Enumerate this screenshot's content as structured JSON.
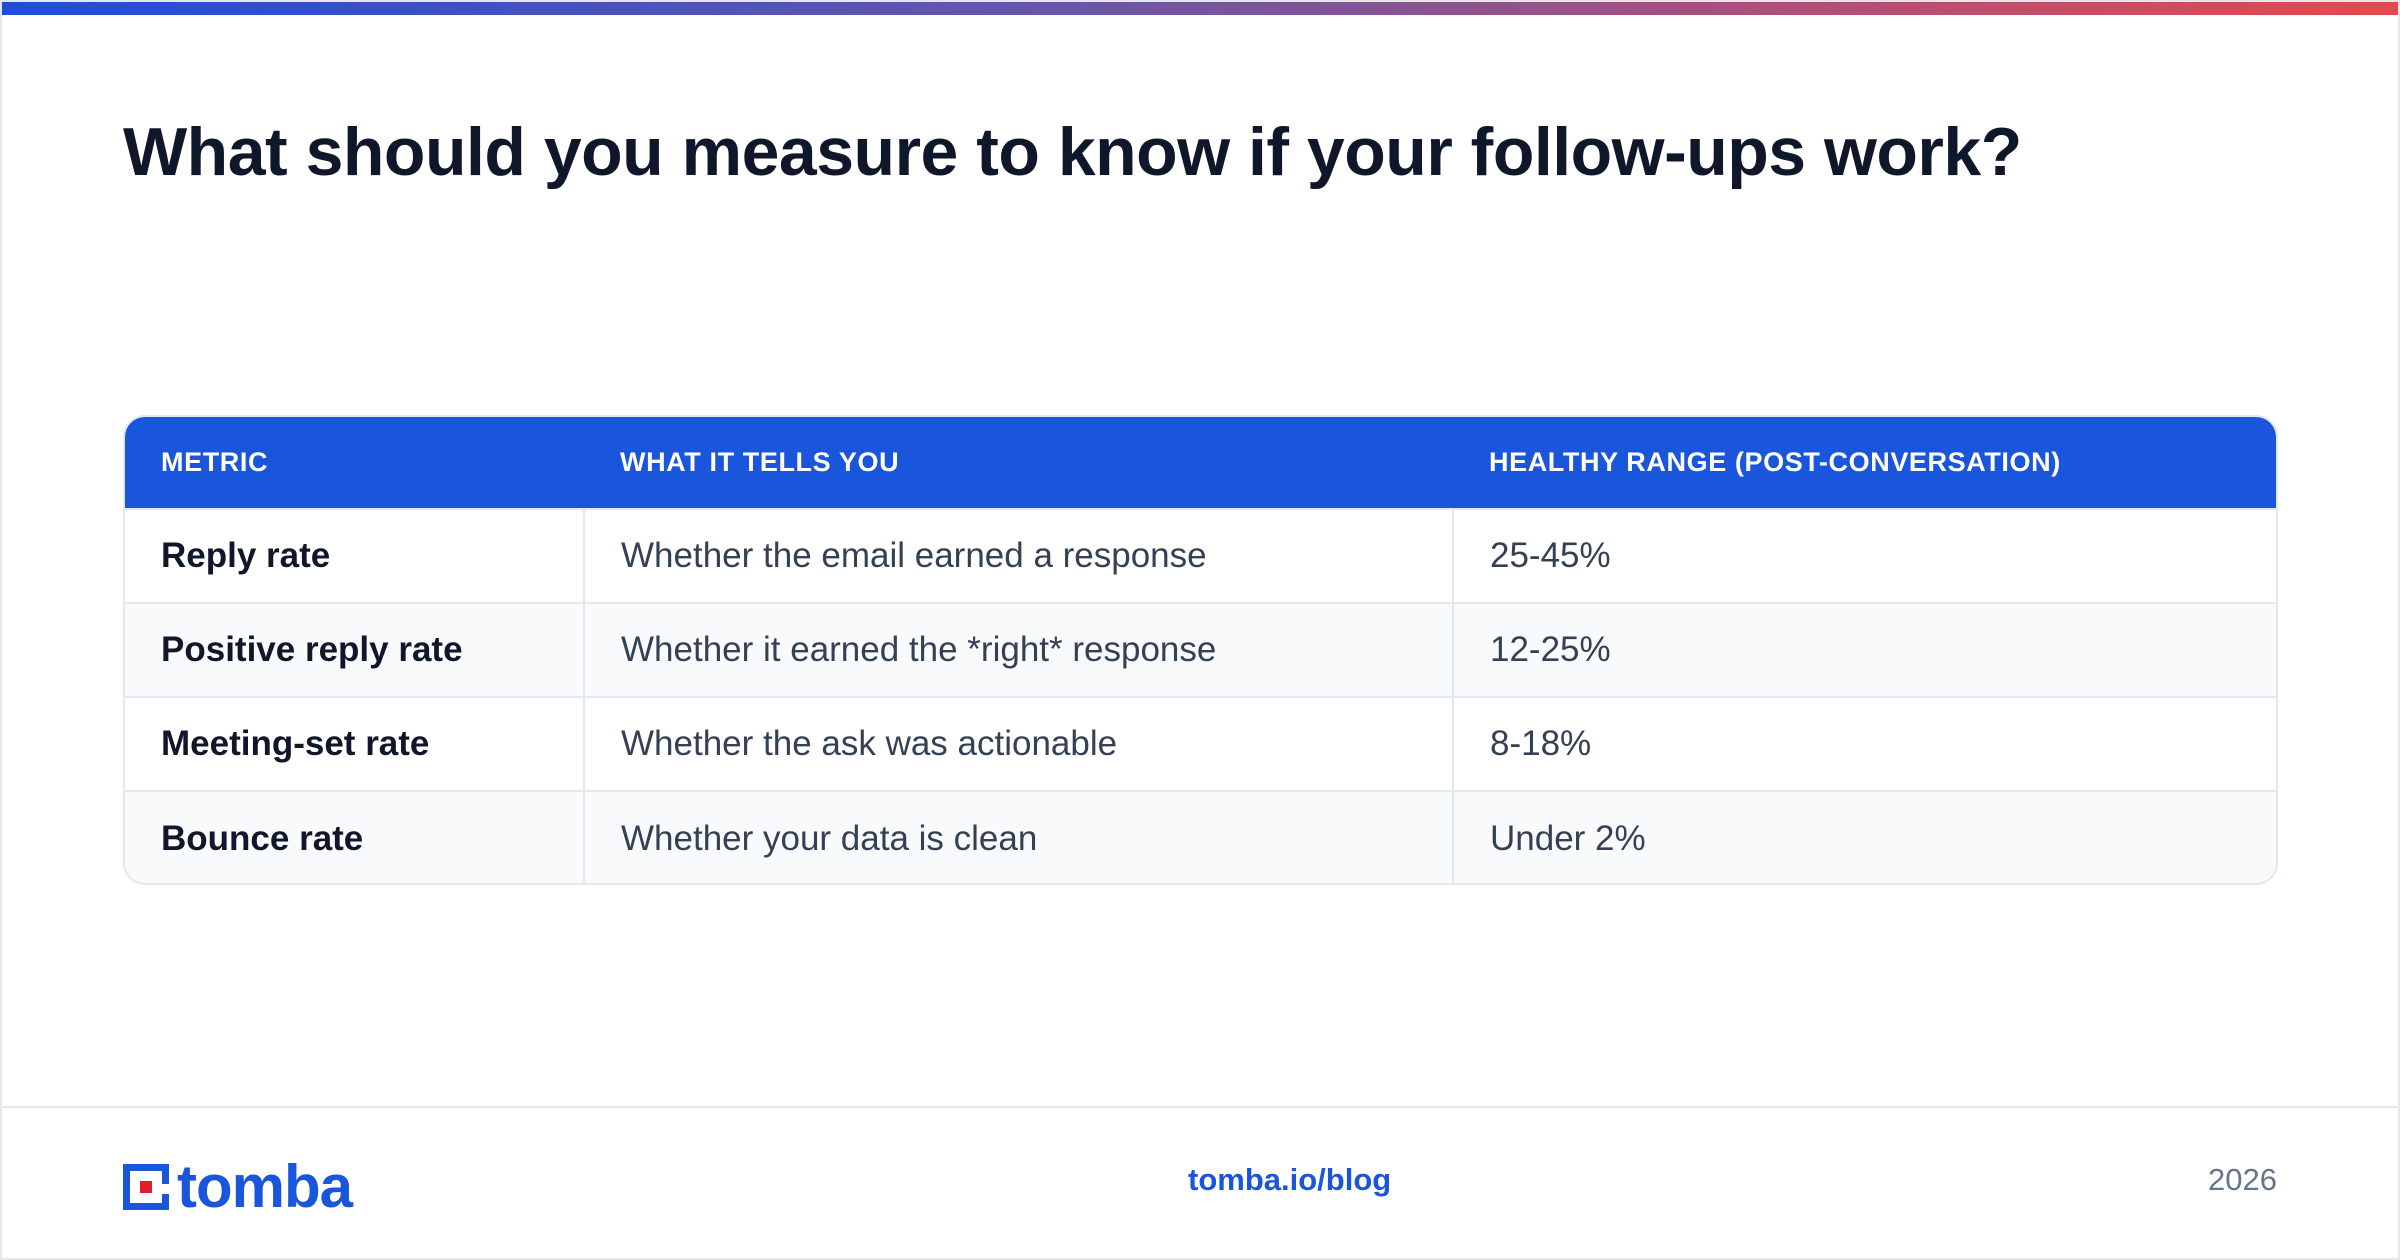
{
  "header": {
    "title": "What should you measure to know if your follow-ups work?"
  },
  "table": {
    "columns": [
      "METRIC",
      "WHAT IT TELLS YOU",
      "HEALTHY RANGE (POST-CONVERSATION)"
    ],
    "rows": [
      {
        "metric": "Reply rate",
        "meaning": "Whether the email earned a response",
        "range": "25-45%"
      },
      {
        "metric": "Positive reply rate",
        "meaning": "Whether it earned the *right* response",
        "range": "12-25%"
      },
      {
        "metric": "Meeting-set rate",
        "meaning": "Whether the ask was actionable",
        "range": "8-18%"
      },
      {
        "metric": "Bounce rate",
        "meaning": "Whether your data is clean",
        "range": "Under 2%"
      }
    ]
  },
  "footer": {
    "logo_text": "tomba",
    "link": "tomba.io/blog",
    "year": "2026"
  },
  "colors": {
    "accent": "#1a56db",
    "logo_red": "#e11d2a",
    "title": "#0f172a",
    "gradient_start": "#1d4ed8",
    "gradient_end": "#e24b4b"
  }
}
